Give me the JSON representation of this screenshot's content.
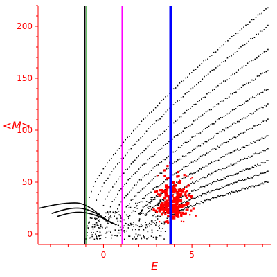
{
  "chart_data": {
    "type": "scatter",
    "title": "",
    "xlabel": "E",
    "ylabel": "<M>",
    "xlim": [
      -3.7,
      9.5
    ],
    "ylim": [
      -10,
      220
    ],
    "x_ticks": [
      0,
      5
    ],
    "y_ticks": [
      0,
      50,
      100,
      150,
      200
    ],
    "x_tick_labels": [
      "0",
      "5"
    ],
    "y_tick_labels": [
      "0",
      "50",
      "100",
      "150",
      "200"
    ],
    "grid": false,
    "colors": {
      "axes": "#ff0000",
      "series_black": "#000000",
      "series_red": "#ff0000",
      "line_green": "#009900",
      "line_magenta": "#ff00ff",
      "line_blue": "#0000ff",
      "line_black": "#000000"
    },
    "vertical_lines": [
      {
        "x": -1.05,
        "color": "#000000"
      },
      {
        "x": -0.95,
        "color": "#009900"
      },
      {
        "x": 1.05,
        "color": "#ff00ff"
      },
      {
        "x": 3.8,
        "color": "#0000ff",
        "emphasis": "thick"
      }
    ],
    "series": [
      {
        "marker": "small-dot",
        "color": "#000000",
        "description_bands": [
          {
            "x_from": -0.8,
            "x_to": 9.3,
            "y_from": 35,
            "y_to": 218
          },
          {
            "x_from": -0.4,
            "x_to": 9.3,
            "y_from": 32,
            "y_to": 200
          },
          {
            "x_from": 0.0,
            "x_to": 9.3,
            "y_from": 28,
            "y_to": 178
          },
          {
            "x_from": 0.4,
            "x_to": 9.3,
            "y_from": 26,
            "y_to": 158
          },
          {
            "x_from": 0.8,
            "x_to": 9.3,
            "y_from": 24,
            "y_to": 140
          },
          {
            "x_from": 1.2,
            "x_to": 9.3,
            "y_from": 22,
            "y_to": 125
          },
          {
            "x_from": 1.6,
            "x_to": 9.3,
            "y_from": 20,
            "y_to": 110
          },
          {
            "x_from": 2.0,
            "x_to": 9.3,
            "y_from": 19,
            "y_to": 95
          },
          {
            "x_from": 2.4,
            "x_to": 9.3,
            "y_from": 18,
            "y_to": 82
          },
          {
            "x_from": 2.8,
            "x_to": 9.3,
            "y_from": 17,
            "y_to": 70
          },
          {
            "x_from": 3.2,
            "x_to": 9.3,
            "y_from": 16,
            "y_to": 60
          },
          {
            "x_from": 3.6,
            "x_to": 9.3,
            "y_from": 15,
            "y_to": 50
          }
        ],
        "arcs": [
          {
            "x_from": -3.6,
            "x_peak": -1.6,
            "x_to": 0.2,
            "y_start": 25,
            "y_peak": 30,
            "y_end": 12
          },
          {
            "x_from": -2.9,
            "x_peak": -1.5,
            "x_to": 0.5,
            "y_start": 20,
            "y_peak": 25,
            "y_end": 10
          },
          {
            "x_from": -2.6,
            "x_peak": -1.4,
            "x_to": 0.7,
            "y_start": 17,
            "y_peak": 21,
            "y_end": 9
          }
        ],
        "noise": {
          "x_from": -1.0,
          "x_to": 3.5,
          "y_from": -5,
          "y_to": 40
        }
      },
      {
        "marker": "square",
        "color": "#ff0000",
        "cluster": {
          "x_from": 2.4,
          "x_to": 5.5,
          "y_from": 5,
          "y_to": 80,
          "x_center": 3.9,
          "y_center": 28
        }
      }
    ]
  }
}
